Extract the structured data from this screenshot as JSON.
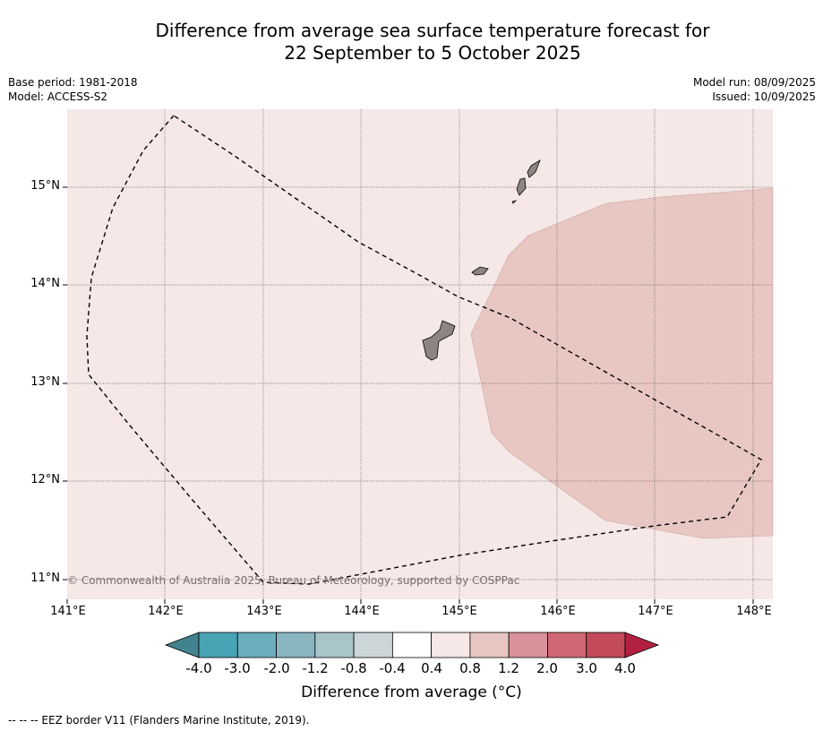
{
  "title": {
    "line1": "Difference from average sea surface temperature forecast for",
    "line2": "22 September to 5 October 2025"
  },
  "meta": {
    "base_period": "Base period: 1981-2018",
    "model": "Model: ACCESS-S2",
    "model_run": "Model run: 08/09/2025",
    "issued": "Issued: 10/09/2025"
  },
  "map": {
    "lon_range": [
      141,
      148.2
    ],
    "lat_range": [
      10.8,
      15.8
    ],
    "lat_labels": [
      "15°N",
      "14°N",
      "13°N",
      "12°N",
      "11°N"
    ],
    "lon_labels": [
      "141°E",
      "142°E",
      "143°E",
      "144°E",
      "145°E",
      "146°E",
      "147°E",
      "148°E"
    ],
    "background_color": "#f5e8e6",
    "anomaly_color": "#e8c7c2",
    "land_color": "#8e8484",
    "copyright": "© Commonwealth of Australia 2025, Bureau of Meteorology, supported by COSPPac"
  },
  "colorbar": {
    "colors": [
      "#43838f",
      "#48a4b5",
      "#6aaebe",
      "#89b5c1",
      "#a8c5ca",
      "#ccd6d8",
      "#ffffff",
      "#f5e8e6",
      "#e8c7c2",
      "#d9929a",
      "#cf6874",
      "#c34a5a",
      "#b32140"
    ],
    "labels": [
      "-4.0",
      "-3.0",
      "-2.0",
      "-1.2",
      "-0.8",
      "-0.4",
      "0.4",
      "0.8",
      "1.2",
      "2.0",
      "3.0",
      "4.0"
    ],
    "title": "Difference from average (°C)"
  },
  "footnote": "--  --  -- EEZ border V11 (Flanders Marine Institute, 2019)."
}
